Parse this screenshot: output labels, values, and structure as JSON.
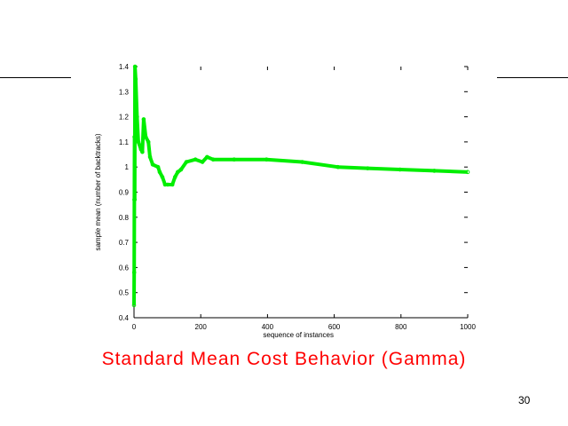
{
  "slide": {
    "title": "Standard Mean Cost Behavior (Gamma)",
    "page_number": "30"
  },
  "chart_data": {
    "type": "line",
    "title": "",
    "xlabel": "sequence of instances",
    "ylabel": "sample mean (number of backtracks)",
    "xlim": [
      0,
      1000
    ],
    "ylim": [
      0.4,
      1.4
    ],
    "xticks": [
      "0",
      "200",
      "400",
      "600",
      "800",
      "1000"
    ],
    "yticks": [
      "0.4",
      "0.5",
      "0.6",
      "0.7",
      "0.8",
      "0.9",
      "1",
      "1.1",
      "1.2",
      "1.3",
      "1.4"
    ],
    "grid": false,
    "series": [
      {
        "name": "sample mean",
        "color": "#00ee00",
        "x": [
          0,
          0.5,
          1,
          1.5,
          2,
          3,
          5,
          9,
          13,
          21,
          25,
          29,
          35,
          43,
          48,
          56,
          72,
          77,
          85,
          93,
          101,
          115,
          123,
          131,
          141,
          157,
          184,
          205,
          219,
          237,
          300,
          397,
          504,
          611,
          700,
          797,
          900,
          1000
        ],
        "y": [
          0.45,
          0.58,
          0.87,
          1.12,
          0.87,
          1.4,
          1.35,
          1.2,
          1.1,
          1.07,
          1.06,
          1.19,
          1.12,
          1.1,
          1.04,
          1.01,
          1.0,
          0.98,
          0.96,
          0.93,
          0.93,
          0.93,
          0.96,
          0.98,
          0.99,
          1.02,
          1.03,
          1.02,
          1.04,
          1.03,
          1.03,
          1.03,
          1.02,
          1.0,
          0.995,
          0.99,
          0.985,
          0.98
        ]
      }
    ]
  }
}
